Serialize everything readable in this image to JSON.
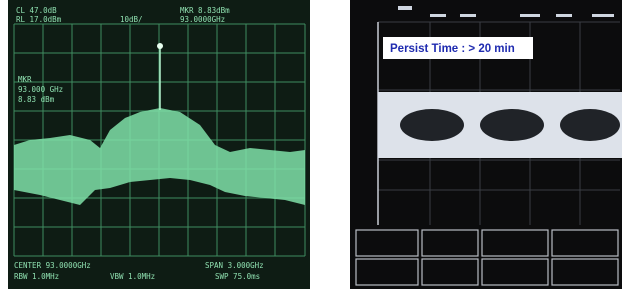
{
  "left_screen": {
    "top": [
      "CL 47.0dB",
      "RL 17.0dBm",
      "10dB/",
      "MKR 8.83dBm",
      "93.0000GHz"
    ],
    "marker": [
      "MKR",
      "93.000 GHz",
      "8.83 dBm"
    ],
    "bottom": [
      "CENTER 93.0000GHz",
      "SPAN 3.000GHz",
      "RBW 1.0MHz",
      "VBW 1.0MHz",
      "SWP 75.0ms"
    ]
  },
  "right_screen": {
    "label": "Persist Time : > 20 min"
  }
}
